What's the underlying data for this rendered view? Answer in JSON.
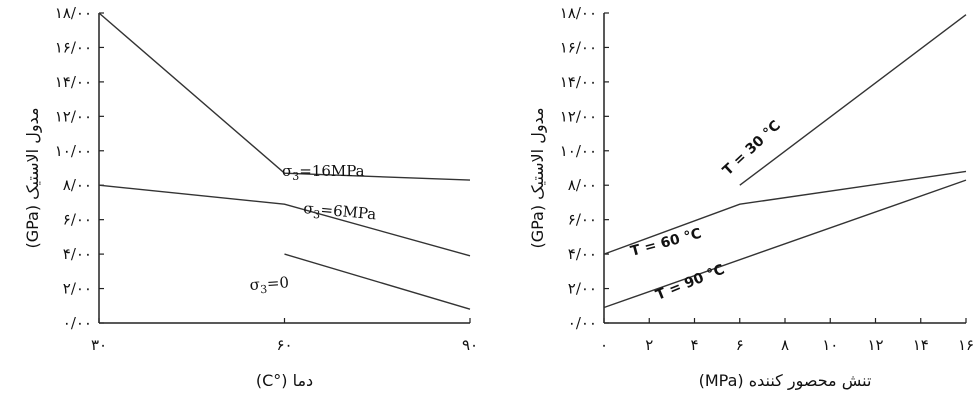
{
  "chart_data": [
    {
      "type": "line",
      "title": "",
      "xlabel": "دما (°C)",
      "ylabel": "مدول الاستیک (GPa)",
      "xlim": [
        30,
        90
      ],
      "ylim": [
        0,
        18
      ],
      "x_ticks": [
        30,
        60,
        90
      ],
      "x_tick_labels": [
        "۳۰",
        "۶۰",
        "۹۰"
      ],
      "y_ticks": [
        0,
        2,
        4,
        6,
        8,
        10,
        12,
        14,
        16,
        18
      ],
      "y_tick_labels": [
        "۰/۰۰",
        "۲/۰۰",
        "۴/۰۰",
        "۶/۰۰",
        "۸/۰۰",
        "۱۰/۰۰",
        "۱۲/۰۰",
        "۱۴/۰۰",
        "۱۶/۰۰",
        "۱۸/۰۰"
      ],
      "grid": false,
      "series": [
        {
          "name": "σ3=16MPa",
          "x": [
            30,
            60,
            90
          ],
          "y": [
            18.0,
            8.7,
            8.3
          ]
        },
        {
          "name": "σ3=6MPa",
          "x": [
            30,
            60,
            90
          ],
          "y": [
            8.0,
            6.9,
            3.9
          ]
        },
        {
          "name": "σ3=0",
          "x": [
            60,
            90
          ],
          "y": [
            4.0,
            0.8
          ]
        }
      ]
    },
    {
      "type": "line",
      "title": "",
      "xlabel": "تنش محصور کننده (MPa)",
      "ylabel": "مدول الاستیک (GPa)",
      "xlim": [
        0,
        16
      ],
      "ylim": [
        0,
        18
      ],
      "x_ticks": [
        0,
        2,
        4,
        6,
        8,
        10,
        12,
        14,
        16
      ],
      "x_tick_labels": [
        "۰",
        "۲",
        "۴",
        "۶",
        "۸",
        "۱۰",
        "۱۲",
        "۱۴",
        "۱۶"
      ],
      "y_ticks": [
        0,
        2,
        4,
        6,
        8,
        10,
        12,
        14,
        16,
        18
      ],
      "y_tick_labels": [
        "۰/۰۰",
        "۲/۰۰",
        "۴/۰۰",
        "۶/۰۰",
        "۸/۰۰",
        "۱۰/۰۰",
        "۱۲/۰۰",
        "۱۴/۰۰",
        "۱۶/۰۰",
        "۱۸/۰۰"
      ],
      "grid": false,
      "series": [
        {
          "name": "T = 30 °C",
          "x": [
            6,
            16
          ],
          "y": [
            8.0,
            17.9
          ]
        },
        {
          "name": "T = 60 °C",
          "x": [
            0,
            6,
            16
          ],
          "y": [
            4.0,
            6.9,
            8.8
          ]
        },
        {
          "name": "T = 90 °C",
          "x": [
            0,
            16
          ],
          "y": [
            0.9,
            8.3
          ]
        }
      ]
    }
  ]
}
